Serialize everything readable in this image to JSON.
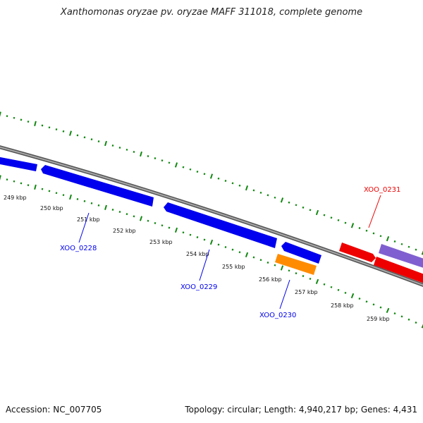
{
  "title": "Xanthomonas oryzae pv. oryzae MAFF 311018, complete genome",
  "footer": {
    "accession": "Accession: NC_007705",
    "summary": "Topology: circular; Length: 4,940,217 bp; Genes: 4,431"
  },
  "scale": {
    "tick_labels": [
      "249 kbp",
      "250 kbp",
      "251 kbp",
      "252 kbp",
      "253 kbp",
      "254 kbp",
      "255 kbp",
      "256 kbp",
      "257 kbp",
      "258 kbp",
      "259 kbp"
    ]
  },
  "genes": [
    {
      "label": "XOO_0228",
      "strand": "-",
      "color": "#0000ee"
    },
    {
      "label": "XOO_0229",
      "strand": "-",
      "color": "#0000ee"
    },
    {
      "label": "XOO_0230",
      "strand": "-",
      "color": "#0000ee"
    },
    {
      "label": "XOO_0231",
      "strand": "+",
      "color": "#ee0000"
    }
  ],
  "colors": {
    "backbone": "#888888",
    "tick": "#118811",
    "minus_strand": "#0000ee",
    "plus_strand": "#ee0000",
    "orange_feature": "#ff8c00",
    "purple_feature": "#8060d0"
  }
}
